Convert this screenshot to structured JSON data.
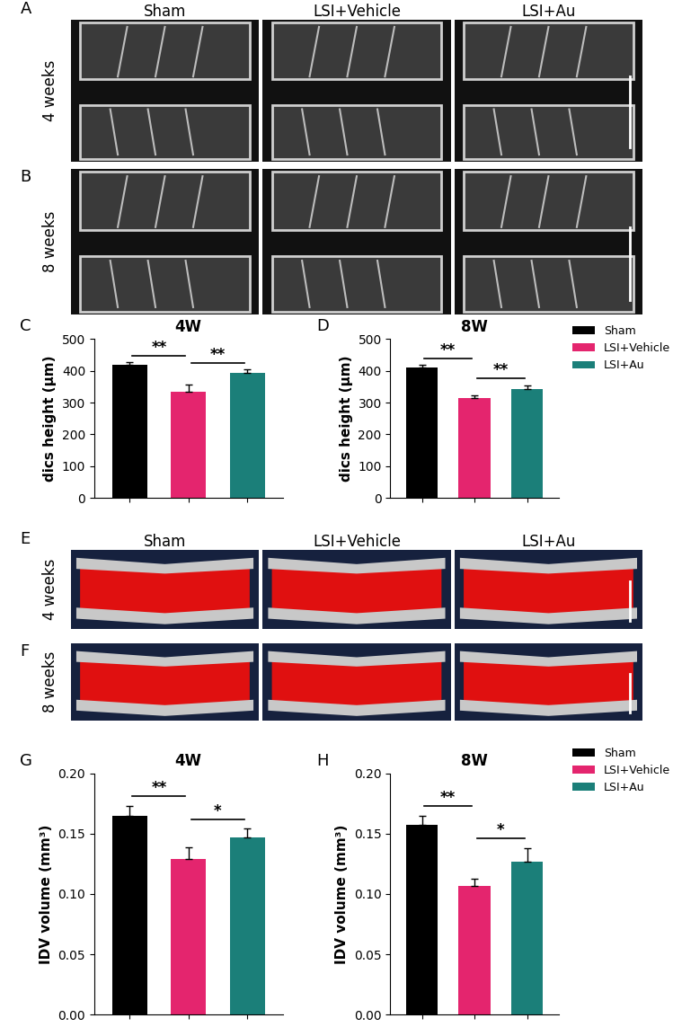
{
  "image_panels": [
    {
      "columns": [
        "Sham",
        "LSI+Vehicle",
        "LSI+Au"
      ],
      "rows": [
        {
          "panel": "A",
          "label": "4 weeks"
        },
        {
          "panel": "B",
          "label": "8 weeks"
        }
      ]
    },
    {
      "columns": [
        "Sham",
        "LSI+Vehicle",
        "LSI+Au"
      ],
      "rows": [
        {
          "panel": "E",
          "label": "4 weeks"
        },
        {
          "panel": "F",
          "label": "8 weeks"
        }
      ]
    }
  ],
  "chart_data": [
    {
      "type": "bar",
      "panel": "C",
      "title": "4W",
      "ylabel": "dics height (μm)",
      "categories": [
        "Sham",
        "LSI+Vehicle",
        "LSI+Au"
      ],
      "values": [
        420,
        335,
        392
      ],
      "errors": [
        8,
        22,
        12
      ],
      "colors": [
        "#000000",
        "#e4256e",
        "#1b7f79"
      ],
      "ylim": [
        0,
        500
      ],
      "yticks": [
        0,
        100,
        200,
        300,
        400,
        500
      ],
      "tick_labels": "y",
      "significance": [
        {
          "pair": [
            0,
            1
          ],
          "label": "**"
        },
        {
          "pair": [
            1,
            2
          ],
          "label": "**"
        }
      ]
    },
    {
      "type": "bar",
      "panel": "D",
      "title": "8W",
      "ylabel": "dics height (μm)",
      "categories": [
        "Sham",
        "LSI+Vehicle",
        "LSI+Au"
      ],
      "values": [
        410,
        315,
        343
      ],
      "errors": [
        8,
        7,
        12
      ],
      "colors": [
        "#000000",
        "#e4256e",
        "#1b7f79"
      ],
      "ylim": [
        0,
        500
      ],
      "yticks": [
        0,
        100,
        200,
        300,
        400,
        500
      ],
      "tick_labels": "y",
      "legend": "right",
      "significance": [
        {
          "pair": [
            0,
            1
          ],
          "label": "**"
        },
        {
          "pair": [
            1,
            2
          ],
          "label": "**"
        }
      ]
    },
    {
      "type": "bar",
      "panel": "G",
      "title": "4W",
      "ylabel": "IDV volume (mm³)",
      "categories": [
        "Sham",
        "LSI+Vehicle",
        "LSI+Au"
      ],
      "values": [
        0.165,
        0.129,
        0.147
      ],
      "errors": [
        0.008,
        0.01,
        0.007
      ],
      "colors": [
        "#000000",
        "#e4256e",
        "#1b7f79"
      ],
      "ylim": [
        0,
        0.2
      ],
      "yticks": [
        {
          "value": 0,
          "label": "0.00"
        },
        {
          "value": 0.05,
          "label": "0.05"
        },
        {
          "value": 0.1,
          "label": "0.10"
        },
        {
          "value": 0.15,
          "label": "0.15"
        },
        {
          "value": 0.2,
          "label": "0.20"
        }
      ],
      "tick_labels": "y",
      "significance": [
        {
          "pair": [
            0,
            1
          ],
          "label": "**"
        },
        {
          "pair": [
            1,
            2
          ],
          "label": "*"
        }
      ]
    },
    {
      "type": "bar",
      "panel": "H",
      "title": "8W",
      "ylabel": "IDV volume (mm³)",
      "categories": [
        "Sham",
        "LSI+Vehicle",
        "LSI+Au"
      ],
      "values": [
        0.157,
        0.107,
        0.127
      ],
      "errors": [
        0.008,
        0.006,
        0.011
      ],
      "colors": [
        "#000000",
        "#e4256e",
        "#1b7f79"
      ],
      "ylim": [
        0,
        0.2
      ],
      "yticks": [
        {
          "value": 0,
          "label": "0.00"
        },
        {
          "value": 0.05,
          "label": "0.05"
        },
        {
          "value": 0.1,
          "label": "0.10"
        },
        {
          "value": 0.15,
          "label": "0.15"
        },
        {
          "value": 0.2,
          "label": "0.20"
        }
      ],
      "tick_labels": "y",
      "legend": "right",
      "significance": [
        {
          "pair": [
            0,
            1
          ],
          "label": "**"
        },
        {
          "pair": [
            1,
            2
          ],
          "label": "*"
        }
      ]
    }
  ]
}
